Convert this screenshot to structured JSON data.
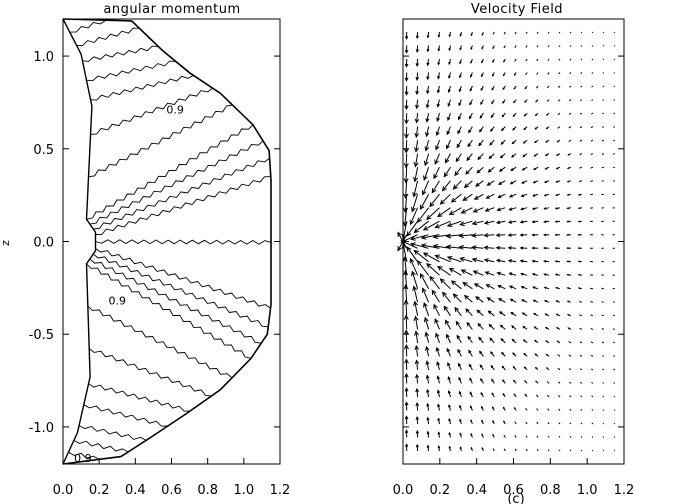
{
  "chart_data": [
    {
      "type": "contour",
      "title": "angular momentum",
      "ylabel": "z",
      "xlim": [
        0.0,
        1.2
      ],
      "ylim": [
        -1.2,
        1.2
      ],
      "xticks": [
        "0.0",
        "0.2",
        "0.4",
        "0.6",
        "0.8",
        "1.0",
        "1.2"
      ],
      "yticks": [
        {
          "v": 1.0,
          "label": "1.0"
        },
        {
          "v": 0.5,
          "label": "0.5"
        },
        {
          "v": 0.0,
          "label": "0.0"
        },
        {
          "v": -0.5,
          "label": "-0.5"
        },
        {
          "v": -1.0,
          "label": "-1.0"
        }
      ],
      "contour_level_labels": [
        {
          "text": "0.9",
          "x": 0.62,
          "y": 0.69
        },
        {
          "text": "0.9",
          "x": 0.3,
          "y": -0.34
        },
        {
          "text": "0.9",
          "x": 0.11,
          "y": -1.19
        }
      ],
      "boundary_outer": [
        [
          0.0,
          1.2
        ],
        [
          0.38,
          1.19
        ],
        [
          0.55,
          1.03
        ],
        [
          0.7,
          0.91
        ],
        [
          0.87,
          0.8
        ],
        [
          1.05,
          0.63
        ],
        [
          1.14,
          0.49
        ],
        [
          1.15,
          0.33
        ],
        [
          1.15,
          -0.34
        ],
        [
          1.13,
          -0.5
        ],
        [
          1.04,
          -0.63
        ],
        [
          0.87,
          -0.8
        ],
        [
          0.68,
          -0.93
        ],
        [
          0.48,
          -1.06
        ],
        [
          0.32,
          -1.16
        ],
        [
          0.0,
          -1.2
        ]
      ],
      "boundary_inner": [
        [
          0.0,
          1.2
        ],
        [
          0.1,
          1.01
        ],
        [
          0.16,
          0.73
        ],
        [
          0.13,
          0.12
        ],
        [
          0.18,
          0.05
        ],
        [
          0.18,
          -0.05
        ],
        [
          0.13,
          -0.12
        ],
        [
          0.15,
          -0.73
        ],
        [
          0.08,
          -1.03
        ],
        [
          0.0,
          -1.2
        ]
      ],
      "contour_count": 24
    },
    {
      "type": "vector_field",
      "title": "Velocity Field",
      "xlim": [
        0.0,
        1.2
      ],
      "ylim": [
        -1.2,
        1.2
      ],
      "xticks": [
        "0.0",
        "0.2",
        "0.4",
        "0.6",
        "0.8",
        "1.0",
        "1.2"
      ],
      "grid_x": [
        0.02,
        1.15,
        20
      ],
      "grid_y": [
        -1.13,
        1.13,
        32
      ],
      "sink_center": [
        0.0,
        0.0
      ],
      "x_axis_note": "(c)"
    }
  ]
}
